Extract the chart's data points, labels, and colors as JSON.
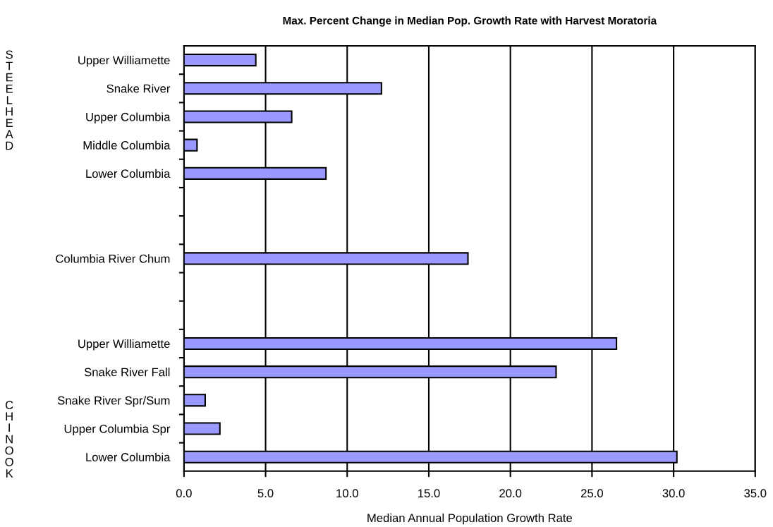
{
  "chart_data": {
    "type": "bar",
    "orientation": "horizontal",
    "title": "Max. Percent Change in Median Pop. Growth Rate with Harvest Moratoria",
    "xlabel": "Median Annual Population Growth Rate",
    "categories": [
      "Upper Williamette",
      "Snake River",
      "Upper Columbia",
      "Middle Columbia",
      "Lower Columbia",
      null,
      null,
      "Columbia River Chum",
      null,
      null,
      "Upper Williamette",
      "Snake River Fall",
      "Snake River Spr/Sum",
      "Upper Columbia Spr",
      "Lower Columbia"
    ],
    "values": [
      4.4,
      12.1,
      6.6,
      0.8,
      8.7,
      null,
      null,
      17.4,
      null,
      null,
      26.5,
      22.8,
      1.3,
      2.2,
      30.2
    ],
    "color": "#9999ff",
    "xlim": [
      0,
      35
    ],
    "xticks": [
      {
        "value": 0,
        "label": "0.0"
      },
      {
        "value": 5,
        "label": "5.0"
      },
      {
        "value": 10,
        "label": "10.0"
      },
      {
        "value": 15,
        "label": "15.0"
      },
      {
        "value": 20,
        "label": "20.0"
      },
      {
        "value": 25,
        "label": "25.0"
      },
      {
        "value": 30,
        "label": "30.0"
      },
      {
        "value": 35,
        "label": "35.0"
      }
    ],
    "grid": "x",
    "annotations": [
      "STEELHEAD",
      "CHINOOK"
    ]
  }
}
